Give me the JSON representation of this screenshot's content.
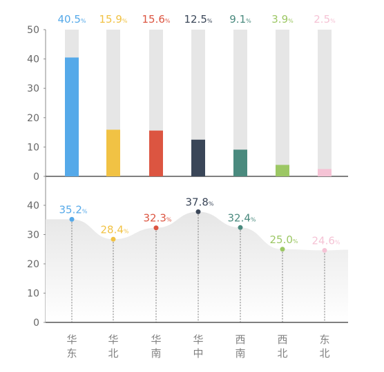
{
  "chart_data": [
    {
      "type": "bar",
      "categories": [
        "华东",
        "华北",
        "华南",
        "华中",
        "西南",
        "西北",
        "东北"
      ],
      "values": [
        40.5,
        15.9,
        15.6,
        12.5,
        9.1,
        3.9,
        2.5
      ],
      "value_labels": [
        "40.5",
        "15.9",
        "15.6",
        "12.5",
        "9.1",
        "3.9",
        "2.5"
      ],
      "unit": "%",
      "ylim": [
        0,
        50
      ],
      "yticks": [
        "0",
        "10",
        "20",
        "30",
        "40",
        "50"
      ],
      "grid": false
    },
    {
      "type": "area",
      "categories": [
        "华东",
        "华北",
        "华南",
        "华中",
        "西南",
        "西北",
        "东北"
      ],
      "values": [
        35.2,
        28.4,
        32.3,
        37.8,
        32.4,
        25.0,
        24.6
      ],
      "value_labels": [
        "35.2",
        "28.4",
        "32.3",
        "37.8",
        "32.4",
        "25.0",
        "24.6"
      ],
      "unit": "%",
      "ylim": [
        0,
        50
      ],
      "yticks": [
        "0",
        "10",
        "20",
        "30",
        "40"
      ],
      "grid": false
    }
  ],
  "category_labels": [
    [
      "华",
      "东"
    ],
    [
      "华",
      "北"
    ],
    [
      "华",
      "南"
    ],
    [
      "华",
      "中"
    ],
    [
      "西",
      "南"
    ],
    [
      "西",
      "北"
    ],
    [
      "东",
      "北"
    ]
  ],
  "colors": [
    "#55a9e9",
    "#f1c244",
    "#dc5541",
    "#3a4658",
    "#4a8a7e",
    "#9cc764",
    "#f5c3d5"
  ],
  "track_color": "#e6e6e6",
  "area_fill_top": "#e8e8e8"
}
